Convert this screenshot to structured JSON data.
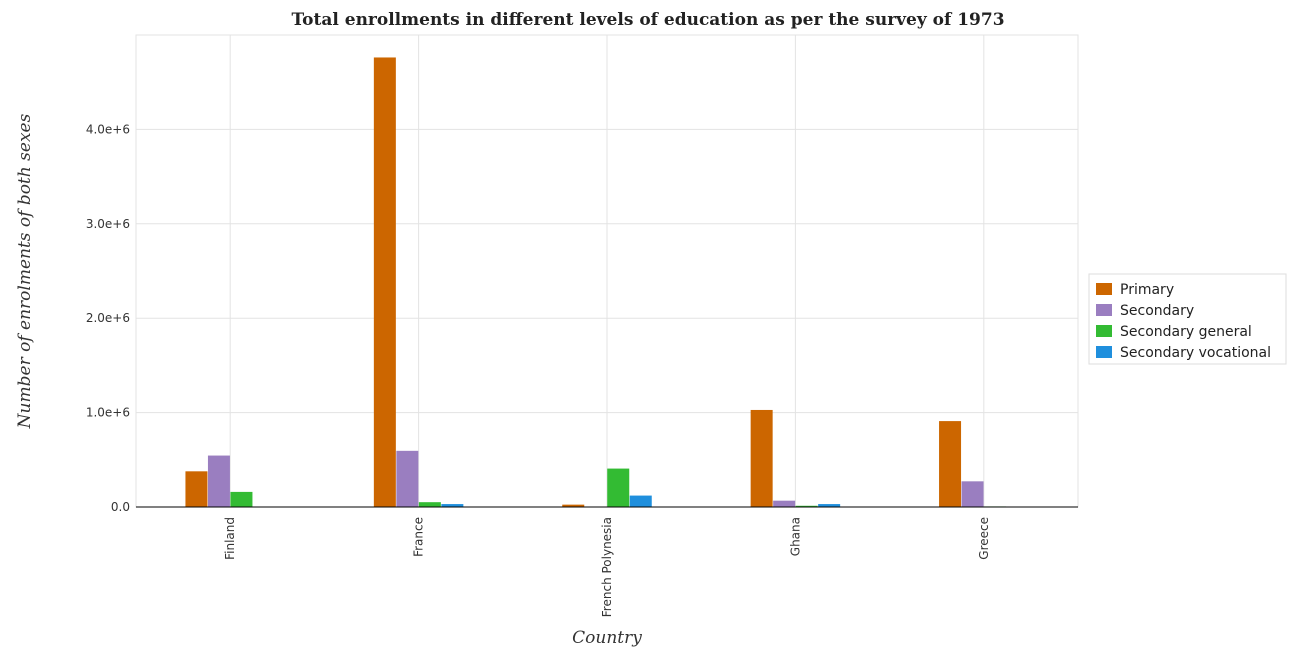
{
  "chart_data": {
    "type": "bar",
    "title": "Total enrollments in different levels of education as per the survey of 1973",
    "xlabel": "Country",
    "ylabel": "Number of enrolments of both sexes",
    "categories": [
      "Finland",
      "France",
      "French Polynesia",
      "Ghana",
      "Greece"
    ],
    "ylim": [
      0,
      5000000
    ],
    "yticks": [
      0,
      1000000,
      2000000,
      3000000,
      4000000
    ],
    "ytick_labels": [
      "0.0",
      "1.0e+6",
      "2.0e+6",
      "3.0e+6",
      "4.0e+6"
    ],
    "grid": true,
    "legend_position": "right",
    "series": [
      {
        "name": "Primary",
        "color": "#cc6600",
        "values": [
          378000,
          4762000,
          25000,
          1028000,
          910000
        ]
      },
      {
        "name": "Secondary",
        "color": "#9a7ec0",
        "values": [
          545000,
          595000,
          5000,
          67000,
          272000
        ]
      },
      {
        "name": "Secondary general",
        "color": "#33bb33",
        "values": [
          160000,
          51000,
          407000,
          13000,
          6000
        ]
      },
      {
        "name": "Secondary vocational",
        "color": "#1f8fdd",
        "values": [
          1000,
          31000,
          121000,
          31000,
          5000
        ]
      }
    ]
  }
}
